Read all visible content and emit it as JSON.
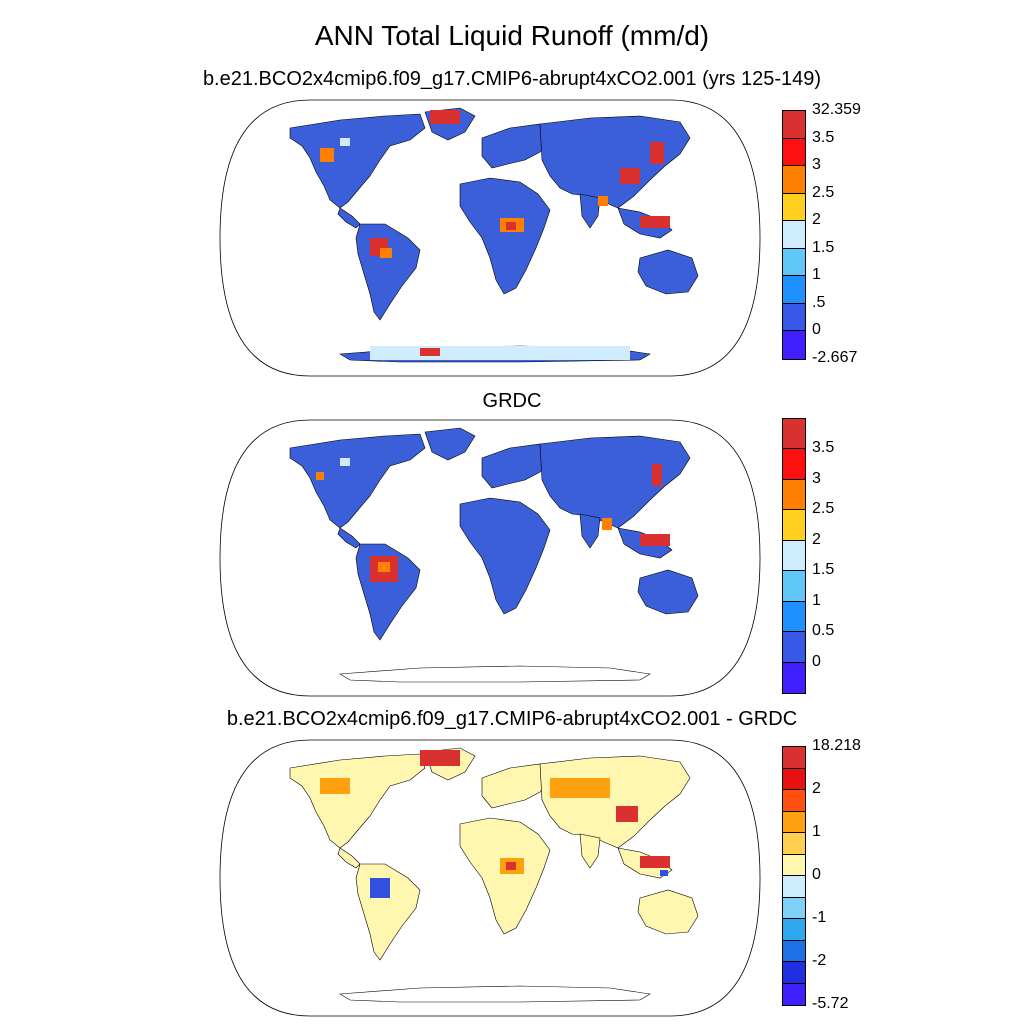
{
  "title": "ANN Total Liquid Runoff (mm/d)",
  "panels": [
    {
      "title": "b.e21.BCO2x4cmip6.f09_g17.CMIP6-abrupt4xCO2.001 (yrs 125-149)",
      "colorbar": {
        "colors": [
          "#d93030",
          "#ff1010",
          "#ff8000",
          "#ffd020",
          "#d0ecff",
          "#60c8f8",
          "#1e90ff",
          "#3858e8",
          "#4020ff"
        ],
        "labels": [
          "32.359",
          "3.5",
          "3",
          "2.5",
          "2",
          "1.5",
          "1",
          ".5",
          "0",
          "-2.667"
        ]
      }
    },
    {
      "title": "GRDC",
      "colorbar": {
        "colors": [
          "#d93030",
          "#ff1010",
          "#ff8000",
          "#ffd020",
          "#d0ecff",
          "#60c8f8",
          "#1e90ff",
          "#3858e8",
          "#4020ff"
        ],
        "labels": [
          "3.5",
          "3",
          "2.5",
          "2",
          "1.5",
          "1",
          "0.5",
          "0"
        ]
      }
    },
    {
      "title": "b.e21.BCO2x4cmip6.f09_g17.CMIP6-abrupt4xCO2.001 - GRDC",
      "colorbar": {
        "colors": [
          "#d93030",
          "#e81010",
          "#ff5010",
          "#ffa010",
          "#ffd050",
          "#fff6b0",
          "#d0ecff",
          "#80d0f8",
          "#30a8f0",
          "#1e70e8",
          "#2030e0",
          "#4020ff"
        ],
        "labels": [
          "18.218",
          "2",
          "1",
          "0",
          "-1",
          "-2",
          "-5.72"
        ]
      }
    }
  ],
  "map": {
    "land_colors_model": {
      "base": "#3a5fd8",
      "warm": "#ff8000",
      "hot": "#d93030",
      "light": "#d0ecff"
    },
    "land_colors_obs": {
      "base": "#3a5fd8",
      "warm": "#ff8000",
      "hot": "#d93030",
      "light": "#d0ecff"
    },
    "land_colors_diff": {
      "base": "#fff6b0",
      "warm": "#ffa010",
      "hot": "#d93030",
      "cool": "#3050e0"
    }
  }
}
